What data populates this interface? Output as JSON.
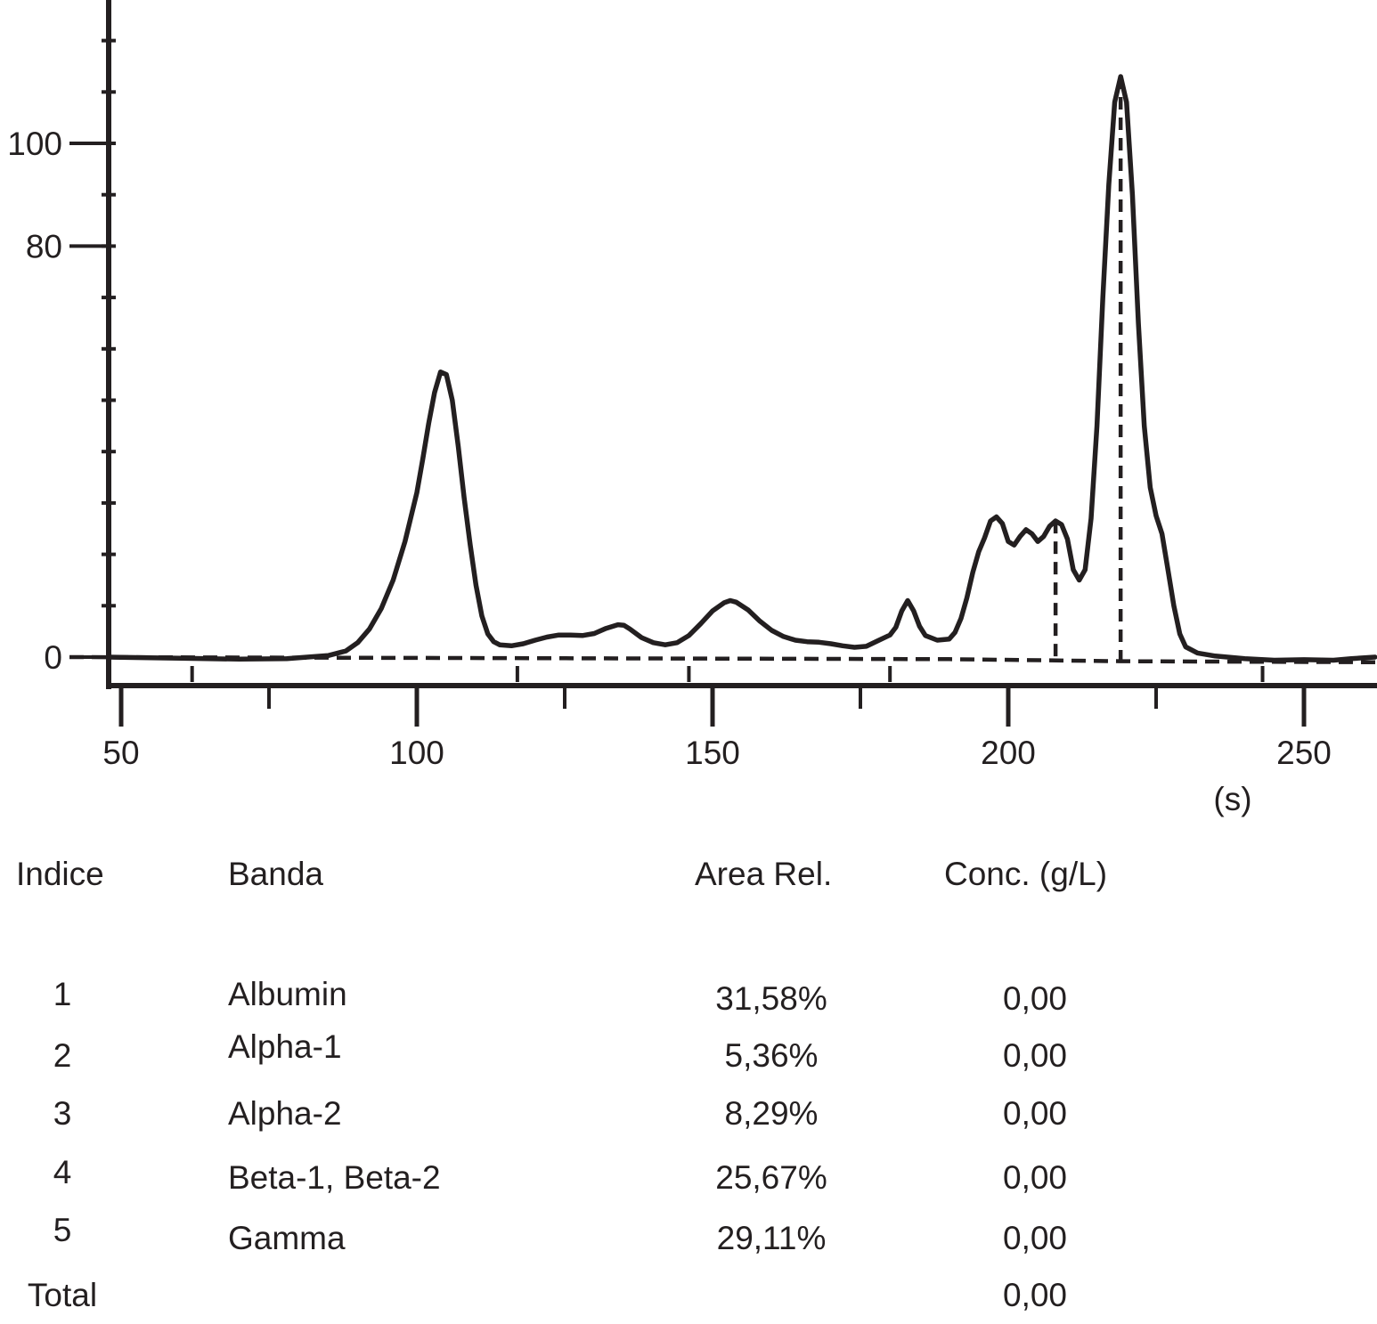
{
  "chart_data": {
    "type": "line",
    "title": "",
    "xlabel": "(s)",
    "ylabel": "",
    "xlim": [
      48,
      262
    ],
    "ylim": [
      -3,
      124
    ],
    "x_ticks": [
      "50",
      "100",
      "150",
      "200",
      "250"
    ],
    "y_ticks": [
      "0",
      "80",
      "100"
    ],
    "grid": false,
    "legend": "none",
    "series": [
      {
        "values": [
          [
            48,
            0.0
          ],
          [
            60,
            -0.2
          ],
          [
            70,
            -0.4
          ],
          [
            78,
            -0.3
          ],
          [
            85,
            0.3
          ],
          [
            88,
            1.2
          ],
          [
            90,
            2.8
          ],
          [
            92,
            5.5
          ],
          [
            94,
            9.5
          ],
          [
            96,
            15.0
          ],
          [
            98,
            22.5
          ],
          [
            100,
            32.0
          ],
          [
            101,
            38.5
          ],
          [
            102,
            45.5
          ],
          [
            103,
            51.5
          ],
          [
            104,
            55.5
          ],
          [
            105,
            55.0
          ],
          [
            106,
            50.0
          ],
          [
            107,
            41.0
          ],
          [
            108,
            31.0
          ],
          [
            109,
            22.0
          ],
          [
            110,
            14.0
          ],
          [
            111,
            8.0
          ],
          [
            112,
            4.5
          ],
          [
            113,
            3.0
          ],
          [
            114,
            2.4
          ],
          [
            116,
            2.2
          ],
          [
            118,
            2.6
          ],
          [
            120,
            3.3
          ],
          [
            122,
            3.9
          ],
          [
            124,
            4.3
          ],
          [
            126,
            4.3
          ],
          [
            128,
            4.2
          ],
          [
            130,
            4.6
          ],
          [
            132,
            5.6
          ],
          [
            134,
            6.3
          ],
          [
            135,
            6.2
          ],
          [
            136,
            5.5
          ],
          [
            138,
            3.8
          ],
          [
            140,
            2.8
          ],
          [
            142,
            2.4
          ],
          [
            144,
            2.8
          ],
          [
            146,
            4.2
          ],
          [
            148,
            6.5
          ],
          [
            150,
            9.0
          ],
          [
            152,
            10.6
          ],
          [
            153,
            11.0
          ],
          [
            154,
            10.7
          ],
          [
            156,
            9.2
          ],
          [
            158,
            7.0
          ],
          [
            160,
            5.2
          ],
          [
            162,
            4.0
          ],
          [
            164,
            3.3
          ],
          [
            166,
            3.0
          ],
          [
            168,
            2.9
          ],
          [
            170,
            2.6
          ],
          [
            172,
            2.2
          ],
          [
            174,
            1.9
          ],
          [
            176,
            2.1
          ],
          [
            178,
            3.2
          ],
          [
            180,
            4.3
          ],
          [
            181,
            5.8
          ],
          [
            182,
            9.0
          ],
          [
            183,
            11.0
          ],
          [
            184,
            9.0
          ],
          [
            185,
            6.0
          ],
          [
            186,
            4.2
          ],
          [
            188,
            3.3
          ],
          [
            190,
            3.5
          ],
          [
            191,
            4.8
          ],
          [
            192,
            7.5
          ],
          [
            193,
            11.5
          ],
          [
            194,
            16.5
          ],
          [
            195,
            20.5
          ],
          [
            196,
            23.2
          ],
          [
            197,
            26.5
          ],
          [
            198,
            27.3
          ],
          [
            199,
            26.0
          ],
          [
            200,
            22.5
          ],
          [
            201,
            21.8
          ],
          [
            202,
            23.5
          ],
          [
            203,
            24.8
          ],
          [
            204,
            24.0
          ],
          [
            205,
            22.5
          ],
          [
            206,
            23.5
          ],
          [
            207,
            25.5
          ],
          [
            208,
            26.5
          ],
          [
            209,
            25.8
          ],
          [
            210,
            23.0
          ],
          [
            211,
            17.0
          ],
          [
            212,
            15.0
          ],
          [
            213,
            17.0
          ],
          [
            214,
            27.0
          ],
          [
            215,
            45.0
          ],
          [
            216,
            70.0
          ],
          [
            217,
            92.0
          ],
          [
            218,
            108.0
          ],
          [
            219,
            113.0
          ],
          [
            220,
            108.0
          ],
          [
            221,
            90.0
          ],
          [
            222,
            65.0
          ],
          [
            223,
            45.0
          ],
          [
            224,
            33.0
          ],
          [
            225,
            27.5
          ],
          [
            226,
            24.0
          ],
          [
            227,
            17.0
          ],
          [
            228,
            10.0
          ],
          [
            229,
            4.5
          ],
          [
            230,
            2.0
          ],
          [
            232,
            0.8
          ],
          [
            235,
            0.2
          ],
          [
            240,
            -0.3
          ],
          [
            245,
            -0.6
          ],
          [
            250,
            -0.5
          ],
          [
            255,
            -0.6
          ],
          [
            258,
            -0.3
          ],
          [
            262,
            0.0
          ]
        ]
      }
    ],
    "band_boundaries": [
      117,
      146,
      180,
      208,
      219
    ]
  },
  "table": {
    "headers": {
      "index": "Indice",
      "band": "Banda",
      "area": "Area Rel.",
      "conc": "Conc. (g/L)"
    },
    "rows": [
      {
        "index": "1",
        "band": "Albumin",
        "area": "31,58%",
        "conc": "0,00"
      },
      {
        "index": "2",
        "band": "Alpha-1",
        "area": "5,36%",
        "conc": "0,00"
      },
      {
        "index": "3",
        "band": "Alpha-2",
        "area": "8,29%",
        "conc": "0,00"
      },
      {
        "index": "4",
        "band": "Beta-1, Beta-2",
        "area": "25,67%",
        "conc": "0,00"
      },
      {
        "index": "5",
        "band": "Gamma",
        "area": "29,11%",
        "conc": "0,00"
      }
    ],
    "total": {
      "label": "Total",
      "conc": "0,00"
    }
  }
}
